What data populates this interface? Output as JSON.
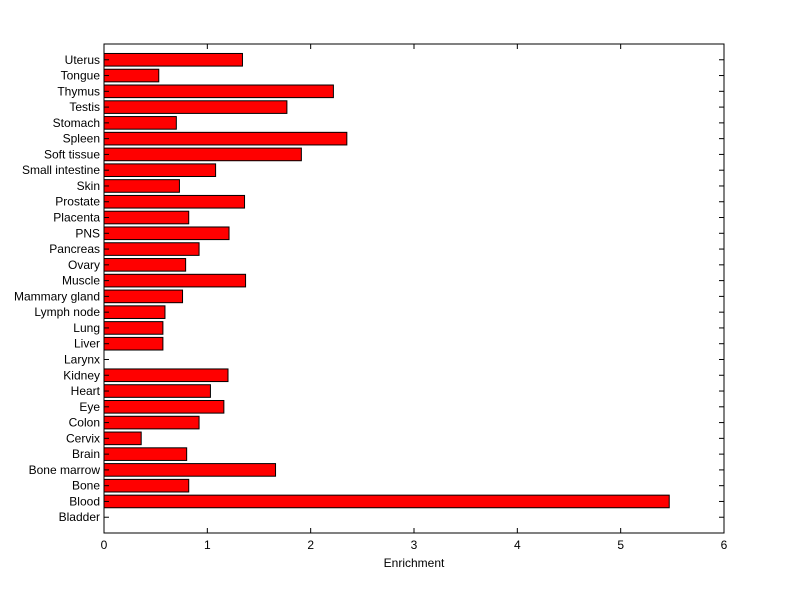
{
  "chart_data": {
    "type": "bar",
    "orientation": "horizontal",
    "title": "",
    "xlabel": "Enrichment",
    "ylabel": "",
    "xlim": [
      0,
      6
    ],
    "xticks": [
      0,
      1,
      2,
      3,
      4,
      5,
      6
    ],
    "grid": false,
    "legend": "none",
    "bar_color": "#ff0000",
    "categories": [
      "Bladder",
      "Blood",
      "Bone",
      "Bone marrow",
      "Brain",
      "Cervix",
      "Colon",
      "Eye",
      "Heart",
      "Kidney",
      "Larynx",
      "Liver",
      "Lung",
      "Lymph node",
      "Mammary gland",
      "Muscle",
      "Ovary",
      "Pancreas",
      "PNS",
      "Placenta",
      "Prostate",
      "Skin",
      "Small intestine",
      "Soft tissue",
      "Spleen",
      "Stomach",
      "Testis",
      "Thymus",
      "Tongue",
      "Uterus"
    ],
    "values": [
      0,
      5.47,
      0.82,
      1.66,
      0.8,
      0.36,
      0.92,
      1.16,
      1.03,
      1.2,
      0,
      0.57,
      0.57,
      0.59,
      0.76,
      1.37,
      0.79,
      0.92,
      1.21,
      0.82,
      1.36,
      0.73,
      1.08,
      1.91,
      2.35,
      0.7,
      1.77,
      2.22,
      0.53,
      1.34
    ]
  }
}
